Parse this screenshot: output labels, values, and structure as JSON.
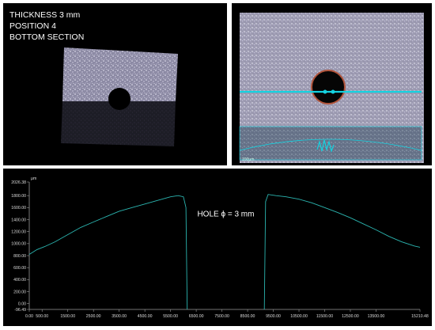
{
  "sample_label": {
    "line1": "THICKNESS 3 mm",
    "line2": "POSITION 4",
    "line3": "BOTTOM SECTION"
  },
  "zoom_view": {
    "small_label": "100μm"
  },
  "colors": {
    "profile": "#2bb5b0",
    "scan_line": "#14d2e0",
    "background": "#000000",
    "text": "#ffffff"
  },
  "chart_data": {
    "type": "line",
    "title": "",
    "annotation": "HOLE ϕ = 3 mm",
    "unit_label": "μm",
    "xlim": [
      0,
      15210.48
    ],
    "ylim": [
      -96.49,
      2026.38
    ],
    "x_ticks": [
      "0.00",
      "500.00",
      "1500.00",
      "2500.00",
      "3500.00",
      "4500.00",
      "5500.00",
      "6500.00",
      "7500.00",
      "8500.00",
      "9500.00",
      "10500.00",
      "11500.00",
      "12500.00",
      "13500.00",
      "15210.48"
    ],
    "x_tick_values": [
      0,
      500,
      1500,
      2500,
      3500,
      4500,
      5500,
      6500,
      7500,
      8500,
      9500,
      10500,
      11500,
      12500,
      13500,
      15210.48
    ],
    "y_ticks": [
      "2026.38",
      "1800.00",
      "1600.00",
      "1400.00",
      "1200.00",
      "1000.00",
      "800.00",
      "600.00",
      "400.00",
      "200.00",
      "0.00",
      "-96.49"
    ],
    "y_tick_values": [
      2026.38,
      1800,
      1600,
      1400,
      1200,
      1000,
      800,
      600,
      400,
      200,
      0,
      -96.49
    ],
    "hole_edges_x": [
      6150,
      9150
    ],
    "series": [
      {
        "values": [
          [
            0,
            820
          ],
          [
            300,
            900
          ],
          [
            600,
            950
          ],
          [
            1000,
            1030
          ],
          [
            1500,
            1150
          ],
          [
            2000,
            1270
          ],
          [
            2500,
            1360
          ],
          [
            3000,
            1450
          ],
          [
            3500,
            1540
          ],
          [
            4000,
            1600
          ],
          [
            4500,
            1660
          ],
          [
            5000,
            1720
          ],
          [
            5500,
            1780
          ],
          [
            5800,
            1800
          ],
          [
            6000,
            1780
          ],
          [
            6100,
            1600
          ],
          [
            6150,
            -96.49
          ]
        ]
      },
      {
        "values": [
          [
            9150,
            -96.49
          ],
          [
            9200,
            1700
          ],
          [
            9300,
            1820
          ],
          [
            9600,
            1800
          ],
          [
            10000,
            1780
          ],
          [
            10500,
            1740
          ],
          [
            11000,
            1680
          ],
          [
            11500,
            1600
          ],
          [
            12000,
            1520
          ],
          [
            12500,
            1430
          ],
          [
            13000,
            1330
          ],
          [
            13500,
            1230
          ],
          [
            14000,
            1120
          ],
          [
            14500,
            1030
          ],
          [
            15000,
            960
          ],
          [
            15210.48,
            940
          ]
        ]
      }
    ]
  }
}
